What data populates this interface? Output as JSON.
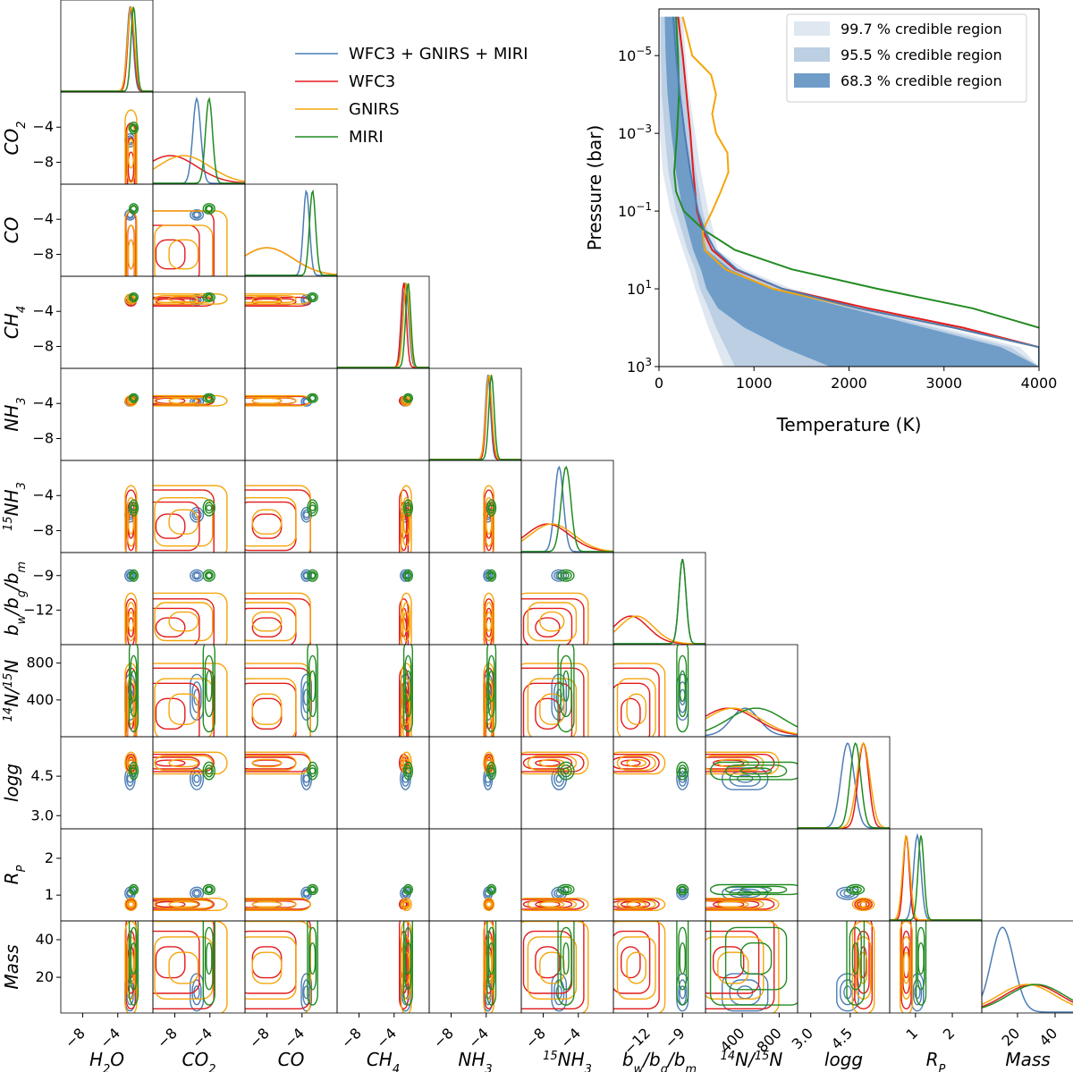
{
  "colors": {
    "joint": "#4c7db5",
    "wfc3": "#e31a1c",
    "gnirs": "#f5a50a",
    "miri": "#228b22",
    "cr997": "#dfe7f1",
    "cr955": "#bccfe3",
    "cr683": "#6f9dc8"
  },
  "chart_data": [
    {
      "type": "corner",
      "parameters": [
        {
          "key": "h2o",
          "label": "H2O",
          "range": [
            -10.5,
            0
          ],
          "ticks": [
            -8,
            -4
          ]
        },
        {
          "key": "co2",
          "label": "CO2",
          "range": [
            -10.5,
            0
          ],
          "ticks": [
            -8,
            -4
          ]
        },
        {
          "key": "co",
          "label": "CO",
          "range": [
            -10.5,
            0
          ],
          "ticks": [
            -8,
            -4
          ]
        },
        {
          "key": "ch4",
          "label": "CH4",
          "range": [
            -10.5,
            0
          ],
          "ticks": [
            -8,
            -4
          ]
        },
        {
          "key": "nh3",
          "label": "NH3",
          "range": [
            -10.5,
            0
          ],
          "ticks": [
            -8,
            -4
          ]
        },
        {
          "key": "n15h3",
          "label": "15NH3",
          "range": [
            -10.5,
            0
          ],
          "ticks": [
            -8,
            -4
          ]
        },
        {
          "key": "bw",
          "label": "bw/bg/bm",
          "range": [
            -15,
            -7
          ],
          "ticks": [
            -12,
            -9
          ]
        },
        {
          "key": "ratio",
          "label": "14N/15N",
          "range": [
            1,
            1000
          ],
          "ticks": [
            400,
            800
          ]
        },
        {
          "key": "logg",
          "label": "logg",
          "range": [
            2.5,
            6.0
          ],
          "ticks": [
            3.0,
            4.5
          ]
        },
        {
          "key": "rp",
          "label": "RP",
          "range": [
            0.3,
            2.8
          ],
          "ticks": [
            1,
            2
          ]
        },
        {
          "key": "mass",
          "label": "Mass",
          "range": [
            1,
            50
          ],
          "ticks": [
            20,
            40
          ]
        }
      ],
      "series": [
        {
          "name": "WFC3 + GNIRS + MIRI",
          "color_key": "joint"
        },
        {
          "name": "WFC3",
          "color_key": "wfc3"
        },
        {
          "name": "GNIRS",
          "color_key": "gnirs"
        },
        {
          "name": "MIRI",
          "color_key": "miri"
        }
      ],
      "posterior_medians": {
        "joint": [
          -2.6,
          -5.5,
          -3.5,
          -2.7,
          -3.8,
          -6.2,
          -9.0,
          430,
          4.4,
          1.05,
          12
        ],
        "wfc3": [
          -2.5,
          -8.5,
          -8.0,
          -2.9,
          -3.7,
          -7.5,
          -13.5,
          250,
          5.0,
          0.75,
          28
        ],
        "gnirs": [
          -2.5,
          -7.0,
          -8.0,
          -2.6,
          -3.7,
          -7.0,
          -13.0,
          300,
          5.0,
          0.75,
          25
        ],
        "miri": [
          -2.2,
          -4.1,
          -2.8,
          -2.4,
          -3.4,
          -5.4,
          -9.0,
          550,
          4.7,
          1.15,
          30
        ]
      },
      "posterior_widths": {
        "joint": [
          0.35,
          0.45,
          0.35,
          0.35,
          0.3,
          0.5,
          0.3,
          150,
          0.25,
          0.1,
          6
        ],
        "wfc3": [
          0.35,
          3,
          3,
          0.3,
          0.3,
          2.5,
          1.5,
          300,
          0.2,
          0.08,
          15
        ],
        "gnirs": [
          0.4,
          3,
          3,
          0.35,
          0.35,
          2.5,
          1.5,
          300,
          0.25,
          0.1,
          15
        ],
        "miri": [
          0.3,
          0.4,
          0.35,
          0.3,
          0.3,
          0.55,
          0.3,
          300,
          0.2,
          0.08,
          15
        ]
      },
      "y_tick_labels": {
        "co2": [
          "−4",
          "−8"
        ],
        "co": [
          "−4",
          "−8"
        ],
        "ch4": [
          "−4",
          "−8"
        ],
        "nh3": [
          "−4",
          "−8"
        ],
        "n15h3": [
          "−4",
          "−8"
        ],
        "bw": [
          "−9",
          "−12"
        ],
        "ratio": [
          "800",
          "400"
        ],
        "logg": [
          "4.5",
          "3.0"
        ],
        "rp": [
          "2",
          "1"
        ],
        "mass": [
          "40",
          "20"
        ]
      },
      "x_tick_labels": {
        "h2o": [
          "−8",
          "−4"
        ],
        "co2": [
          "−8",
          "−4"
        ],
        "co": [
          "−8",
          "−4"
        ],
        "ch4": [
          "−8",
          "−4"
        ],
        "nh3": [
          "−8",
          "−4"
        ],
        "n15h3": [
          "−8",
          "−4"
        ],
        "bw": [
          "−12",
          "−9"
        ],
        "ratio": [
          "400",
          "800"
        ],
        "logg": [
          "3.0",
          "4.5"
        ],
        "rp": [
          "1",
          "2"
        ],
        "mass": [
          "20",
          "40"
        ]
      },
      "legend": {
        "placement": "upper-center",
        "entries": [
          "WFC3 + GNIRS + MIRI",
          "WFC3",
          "GNIRS",
          "MIRI"
        ]
      }
    },
    {
      "type": "line",
      "title": "",
      "xlabel": "Temperature (K)",
      "ylabel": "Pressure (bar)",
      "xlim": [
        0,
        4000
      ],
      "ylim_log10": [
        3.0,
        -6.2
      ],
      "y_scale": "log",
      "x_ticks": [
        "0",
        "1000",
        "2000",
        "3000",
        "4000"
      ],
      "y_ticks": [
        {
          "base": "10",
          "exp": "−5",
          "log": -5
        },
        {
          "base": "10",
          "exp": "−3",
          "log": -3
        },
        {
          "base": "10",
          "exp": "−1",
          "log": -1
        },
        {
          "base": "10",
          "exp": "1",
          "log": 1
        },
        {
          "base": "10",
          "exp": "3",
          "log": 3
        }
      ],
      "legend": {
        "placement": "top-right",
        "entries": [
          "99.7 % credible region",
          "95.5 % credible region",
          "68.3 % credible region"
        ]
      },
      "bands": [
        {
          "name": "99.7 % credible region",
          "color_key": "cr997",
          "log_p": [
            -6,
            -5,
            -4,
            -3,
            -2,
            -1,
            0,
            0.5,
            1,
            1.5,
            2,
            2.5,
            3
          ],
          "t_lo": [
            0,
            0,
            0,
            10,
            40,
            120,
            250,
            320,
            380,
            450,
            520,
            600,
            680
          ],
          "t_hi": [
            250,
            280,
            320,
            380,
            440,
            520,
            620,
            900,
            1400,
            2200,
            3000,
            3800,
            4000
          ]
        },
        {
          "name": "95.5 % credible region",
          "color_key": "cr955",
          "log_p": [
            -6,
            -5,
            -4,
            -3,
            -2,
            -1,
            0,
            0.5,
            1,
            1.5,
            2,
            2.5,
            3
          ],
          "t_lo": [
            20,
            20,
            30,
            60,
            100,
            180,
            300,
            380,
            430,
            520,
            600,
            700,
            800
          ],
          "t_hi": [
            220,
            240,
            280,
            330,
            390,
            460,
            560,
            820,
            1300,
            2100,
            2900,
            3700,
            4000
          ]
        },
        {
          "name": "68.3 % credible region",
          "color_key": "cr683",
          "log_p": [
            -6,
            -5,
            -4,
            -3,
            -2,
            -1,
            0,
            0.5,
            1,
            1.5,
            2,
            2.5,
            3
          ],
          "t_lo": [
            60,
            70,
            90,
            130,
            180,
            250,
            360,
            440,
            500,
            620,
            900,
            1300,
            1800
          ],
          "t_hi": [
            180,
            200,
            230,
            280,
            330,
            400,
            500,
            750,
            1200,
            2000,
            2800,
            3600,
            4000
          ]
        }
      ],
      "series": [
        {
          "name": "WFC3",
          "color_key": "wfc3",
          "log_p": [
            -6.0,
            -5.0,
            -4.0,
            -3.0,
            -2.0,
            -1.0,
            -0.5,
            0.0,
            0.5,
            1.0,
            1.5,
            2.0,
            2.5,
            3.0
          ],
          "t": [
            200,
            250,
            290,
            330,
            360,
            400,
            460,
            560,
            800,
            1300,
            2200,
            3200,
            4000,
            4000
          ]
        },
        {
          "name": "GNIRS",
          "color_key": "gnirs",
          "log_p": [
            -6.0,
            -5.0,
            -4.5,
            -4.0,
            -3.5,
            -3.0,
            -2.5,
            -2.0,
            -1.5,
            -1.0,
            -0.5,
            0.0,
            0.5,
            1.0,
            1.5,
            2.0,
            2.5,
            3.0
          ],
          "t": [
            250,
            350,
            550,
            600,
            560,
            600,
            720,
            730,
            650,
            560,
            460,
            480,
            700,
            1200,
            2100,
            3100,
            4000,
            4000
          ]
        },
        {
          "name": "MIRI",
          "color_key": "miri",
          "log_p": [
            -6.0,
            -5.0,
            -4.0,
            -3.0,
            -2.0,
            -1.5,
            -1.0,
            -0.5,
            0.0,
            0.5,
            1.0,
            1.5,
            2.0
          ],
          "t": [
            180,
            200,
            210,
            190,
            160,
            180,
            260,
            480,
            800,
            1400,
            2300,
            3300,
            4000
          ]
        },
        {
          "name": "WFC3 + GNIRS + MIRI",
          "color_key": "joint",
          "log_p": [
            -6.0,
            -5.0,
            -4.0,
            -3.0,
            -2.0,
            -1.0,
            -0.5,
            0.0,
            0.5,
            1.0,
            1.5,
            2.0,
            2.5,
            3.0
          ],
          "t": [
            150,
            180,
            220,
            270,
            330,
            410,
            480,
            590,
            820,
            1300,
            2100,
            3100,
            4000,
            4000
          ]
        }
      ]
    }
  ]
}
